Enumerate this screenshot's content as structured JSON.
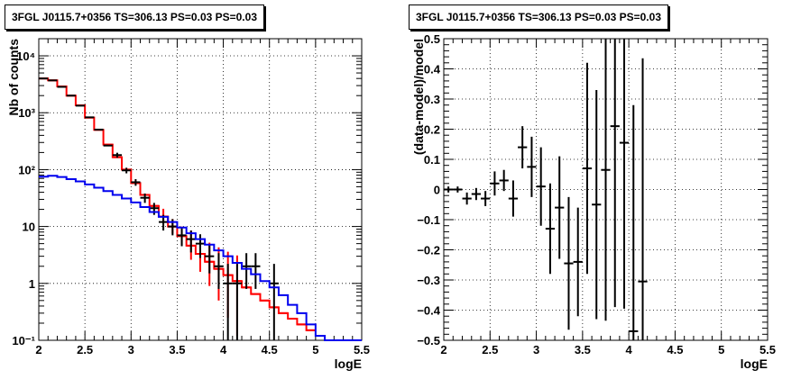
{
  "chart_data": [
    {
      "type": "histogram",
      "title": "3FGL J0115.7+0356 TS=306.13 PS=0.03 PS=0.03",
      "xlabel": "logE",
      "ylabel": "Nb of counts",
      "xlim": [
        2,
        5.5
      ],
      "ylim": [
        0.1,
        20000
      ],
      "yscale": "log",
      "grid": true,
      "x_ticks": [
        "2",
        "2.5",
        "3",
        "3.5",
        "4",
        "4.5",
        "5",
        "5.5"
      ],
      "y_ticks": [
        "10⁻¹",
        "1",
        "10",
        "10²",
        "10³",
        "10⁴"
      ],
      "series": [
        {
          "color": "#ff0000",
          "style": "steps",
          "x": [
            2.05,
            2.15,
            2.25,
            2.35,
            2.45,
            2.55,
            2.65,
            2.75,
            2.85,
            2.95,
            3.05,
            3.15,
            3.25,
            3.35,
            3.45,
            3.55,
            3.65,
            3.75,
            3.85,
            3.95,
            4.05,
            4.15,
            4.25,
            4.35,
            4.45,
            4.55,
            4.65,
            4.75,
            4.85,
            4.95
          ],
          "values": [
            4000,
            3700,
            2900,
            2000,
            1350,
            820,
            500,
            275,
            165,
            100,
            58,
            36,
            23,
            15,
            10,
            6.8,
            4.6,
            3.3,
            2.4,
            1.8,
            1.4,
            1.1,
            0.85,
            0.65,
            0.5,
            0.38,
            0.3,
            0.24,
            0.19,
            0.15
          ],
          "err_low": [
            null,
            null,
            null,
            null,
            null,
            null,
            null,
            null,
            null,
            null,
            null,
            null,
            null,
            11.5,
            7.5,
            4.6,
            2.6,
            1.6,
            0.9,
            0.5,
            0.25,
            0.12,
            null,
            null,
            null,
            null,
            null,
            null,
            null,
            null
          ],
          "err_high": [
            null,
            null,
            null,
            null,
            null,
            null,
            null,
            null,
            null,
            null,
            null,
            null,
            null,
            20.5,
            13.5,
            10,
            8.5,
            6.8,
            5.2,
            4.3,
            3.6,
            3.1,
            2.9,
            2.7,
            2.4,
            2.2,
            1.9,
            1.6,
            1.3,
            1.1
          ]
        },
        {
          "color": "#0000ee",
          "style": "steps",
          "x": [
            2.05,
            2.15,
            2.25,
            2.35,
            2.45,
            2.55,
            2.65,
            2.75,
            2.85,
            2.95,
            3.05,
            3.15,
            3.25,
            3.35,
            3.45,
            3.55,
            3.65,
            3.75,
            3.85,
            3.95,
            4.05,
            4.15,
            4.25,
            4.35,
            4.45,
            4.55,
            4.65,
            4.75,
            4.85,
            4.95,
            5.05,
            5.15,
            5.25,
            5.35,
            5.45
          ],
          "values": [
            75,
            78,
            74,
            68,
            62,
            55,
            48,
            42,
            36,
            31,
            26.5,
            22,
            18,
            14.8,
            12,
            9.6,
            7.6,
            6.0,
            4.8,
            3.8,
            3.0,
            2.3,
            1.8,
            1.45,
            1.1,
            0.85,
            0.62,
            0.42,
            0.3,
            0.19,
            0.12,
            0.1,
            0.1,
            0.1,
            0.1
          ]
        },
        {
          "color": "#000000",
          "style": "markers",
          "x": [
            2.05,
            2.15,
            2.25,
            2.35,
            2.45,
            2.55,
            2.65,
            2.75,
            2.85,
            2.95,
            3.05,
            3.15,
            3.25,
            3.35,
            3.45,
            3.55,
            3.65,
            3.75,
            3.85,
            3.95,
            4.05,
            4.15,
            4.25,
            4.35,
            4.55
          ],
          "values": [
            4000,
            3700,
            2850,
            2000,
            1330,
            830,
            505,
            265,
            180,
            97,
            60,
            32,
            21,
            12,
            10,
            7,
            6,
            5,
            3,
            2,
            1,
            1,
            2,
            2,
            1
          ],
          "err_low": [
            null,
            null,
            null,
            null,
            null,
            null,
            null,
            null,
            162,
            86,
            52,
            26,
            16,
            8.5,
            7,
            4.5,
            3.5,
            2.8,
            1.5,
            0.8,
            0.1,
            0.1,
            0.8,
            0.8,
            0.1
          ],
          "err_high": [
            null,
            null,
            null,
            null,
            null,
            null,
            null,
            null,
            198,
            108,
            68,
            38,
            26,
            16,
            13.5,
            9.5,
            8.5,
            7.3,
            4.8,
            3.4,
            2.2,
            2.2,
            3.4,
            3.4,
            2.2
          ]
        }
      ]
    },
    {
      "type": "scatter",
      "title": "3FGL J0115.7+0356 TS=306.13 PS=0.03 PS=0.03",
      "xlabel": "logE",
      "ylabel": "(data-model)/model",
      "xlim": [
        2,
        5.5
      ],
      "ylim": [
        -0.5,
        0.5
      ],
      "grid": true,
      "x_ticks": [
        "2",
        "2.5",
        "3",
        "3.5",
        "4",
        "4.5",
        "5",
        "5.5"
      ],
      "y_ticks": [
        "−0.5",
        "−0.4",
        "−0.3",
        "−0.2",
        "−0.1",
        "0",
        "0.1",
        "0.2",
        "0.3",
        "0.4",
        "0.5"
      ],
      "series": [
        {
          "color": "#000000",
          "x": [
            2.05,
            2.15,
            2.25,
            2.35,
            2.45,
            2.55,
            2.65,
            2.75,
            2.85,
            2.95,
            3.05,
            3.15,
            3.25,
            3.35,
            3.45,
            3.55,
            3.65,
            3.75,
            3.85,
            3.95,
            4.05,
            4.15
          ],
          "y": [
            0.0,
            0.0,
            -0.03,
            -0.015,
            -0.03,
            0.02,
            0.03,
            -0.03,
            0.14,
            0.075,
            0.01,
            -0.13,
            -0.06,
            -0.245,
            -0.24,
            0.07,
            -0.05,
            0.065,
            0.21,
            0.155,
            -0.47,
            -0.305
          ],
          "err": [
            0.01,
            0.01,
            0.02,
            0.02,
            0.025,
            0.04,
            0.035,
            0.06,
            0.07,
            0.1,
            0.13,
            0.15,
            0.17,
            0.22,
            0.18,
            0.35,
            0.38,
            0.5,
            0.6,
            0.55,
            0.75,
            0.74
          ]
        }
      ]
    }
  ]
}
